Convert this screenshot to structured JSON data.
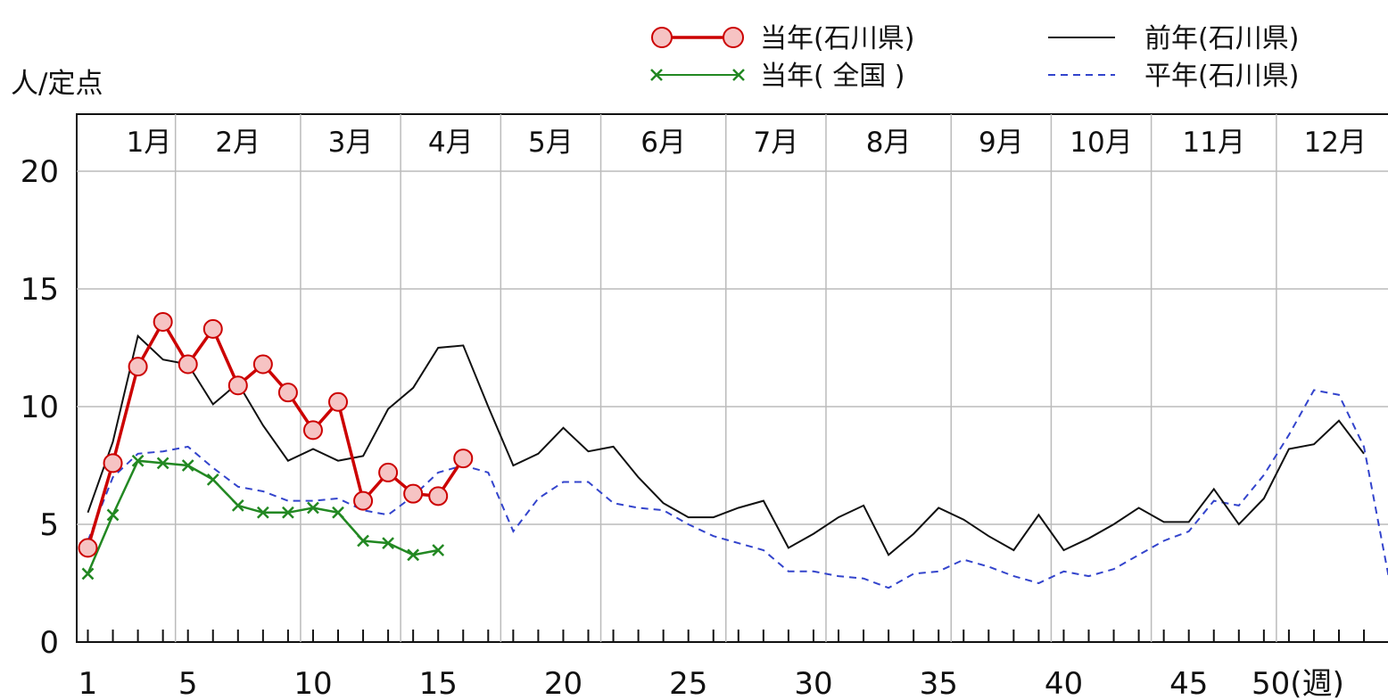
{
  "chart_data": {
    "type": "line",
    "ylabel": "人/定点",
    "ylim": [
      0,
      22
    ],
    "xlim": [
      0.5,
      52.5
    ],
    "yticks": [
      "0",
      "5",
      "10",
      "15",
      "20"
    ],
    "xticks": [
      "1",
      "5",
      "10",
      "15",
      "20",
      "25",
      "30",
      "35",
      "40",
      "45",
      "50(週)"
    ],
    "months": [
      "1月",
      "2月",
      "3月",
      "4月",
      "5月",
      "6月",
      "7月",
      "8月",
      "9月",
      "10月",
      "11月",
      "12月"
    ],
    "grid": true,
    "legend_position": "top",
    "series": [
      {
        "name": "当年(石川県)",
        "color": "#cc0000",
        "marker": "circle",
        "x": [
          1,
          2,
          3,
          4,
          5,
          6,
          7,
          8,
          9,
          10,
          11,
          12,
          13,
          14,
          15,
          16
        ],
        "y": [
          4.0,
          7.6,
          11.7,
          13.6,
          11.8,
          13.3,
          10.9,
          11.8,
          10.6,
          9.0,
          10.2,
          6.0,
          7.2,
          6.3,
          6.2,
          7.8
        ]
      },
      {
        "name": "当年( 全国 )",
        "color": "#228822",
        "marker": "x",
        "x": [
          1,
          2,
          3,
          4,
          5,
          6,
          7,
          8,
          9,
          10,
          11,
          12,
          13,
          14,
          15
        ],
        "y": [
          2.9,
          5.4,
          7.7,
          7.6,
          7.5,
          6.9,
          5.8,
          5.5,
          5.5,
          5.7,
          5.5,
          4.3,
          4.2,
          3.7,
          3.9
        ]
      },
      {
        "name": "前年(石川県)",
        "color": "#111111",
        "marker": "none",
        "x": [
          1,
          2,
          3,
          4,
          5,
          6,
          7,
          8,
          9,
          10,
          11,
          12,
          13,
          14,
          15,
          16,
          17,
          18,
          19,
          20,
          21,
          22,
          23,
          24,
          25,
          26,
          27,
          28,
          29,
          30,
          31,
          32,
          33,
          34,
          35,
          36,
          37,
          38,
          39,
          40,
          41,
          42,
          43,
          44,
          45,
          46,
          47,
          48,
          49,
          50,
          51,
          52
        ],
        "y": [
          5.5,
          8.5,
          13.0,
          12.0,
          11.8,
          10.1,
          11.0,
          9.2,
          7.7,
          8.2,
          7.7,
          7.9,
          9.9,
          10.8,
          12.5,
          12.6,
          10.0,
          7.5,
          8.0,
          9.1,
          8.1,
          8.3,
          7.0,
          5.9,
          5.3,
          5.3,
          5.7,
          6.0,
          4.0,
          4.6,
          5.3,
          5.8,
          3.7,
          4.6,
          5.7,
          5.2,
          4.5,
          3.9,
          5.4,
          3.9,
          4.4,
          5.0,
          5.7,
          5.1,
          5.1,
          6.5,
          5.0,
          6.1,
          8.2,
          8.4,
          9.4,
          8.0
        ]
      },
      {
        "name": "平年(石川県)",
        "color": "#3344cc",
        "marker": "none",
        "x": [
          1,
          2,
          3,
          4,
          5,
          6,
          7,
          8,
          9,
          10,
          11,
          12,
          13,
          14,
          15,
          16,
          17,
          18,
          19,
          20,
          21,
          22,
          23,
          24,
          25,
          26,
          27,
          28,
          29,
          30,
          31,
          32,
          33,
          34,
          35,
          36,
          37,
          38,
          39,
          40,
          41,
          42,
          43,
          44,
          45,
          46,
          47,
          48,
          49,
          50,
          51,
          52,
          53
        ],
        "y": [
          4.3,
          7.0,
          8.0,
          8.1,
          8.3,
          7.4,
          6.6,
          6.4,
          6.0,
          6.0,
          6.1,
          5.6,
          5.4,
          6.2,
          7.2,
          7.5,
          7.2,
          4.7,
          6.1,
          6.8,
          6.8,
          5.9,
          5.7,
          5.6,
          5.0,
          4.5,
          4.2,
          3.9,
          3.0,
          3.0,
          2.8,
          2.7,
          2.3,
          2.9,
          3.0,
          3.5,
          3.2,
          2.8,
          2.5,
          3.0,
          2.8,
          3.1,
          3.7,
          4.3,
          4.7,
          6.0,
          5.8,
          7.1,
          8.8,
          10.7,
          10.5,
          8.3,
          2.7
        ]
      }
    ]
  }
}
